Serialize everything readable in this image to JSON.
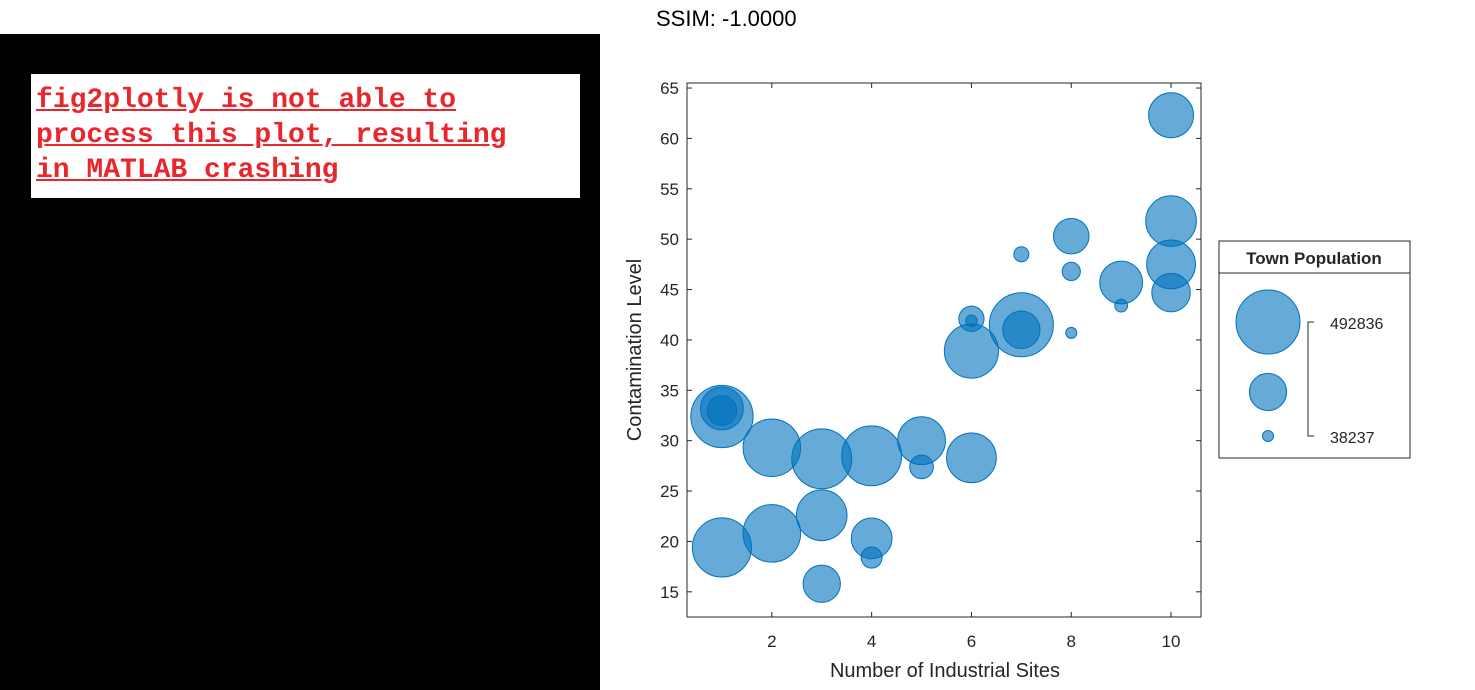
{
  "left_panel": {
    "error_message": "fig2plotly is not able to\nprocess this plot, resulting\nin MATLAB crashing",
    "error_color": "#e8262b"
  },
  "chart_data": {
    "type": "scatter",
    "title": "SSIM: -1.0000",
    "xlabel": "Number of Industrial Sites",
    "ylabel": "Contamination Level",
    "xlim": [
      0.3,
      10.6
    ],
    "ylim": [
      12.5,
      65.5
    ],
    "xticks": [
      2,
      4,
      6,
      8,
      10
    ],
    "yticks": [
      15,
      20,
      25,
      30,
      35,
      40,
      45,
      50,
      55,
      60,
      65
    ],
    "grid": false,
    "marker_color": "#0072BD",
    "marker_alpha": 0.6,
    "legend": {
      "title": "Town Population",
      "placement": "outside-right",
      "max_label": "492836",
      "min_label": "38237",
      "max_value": 492836,
      "min_value": 38237
    },
    "points": [
      {
        "x": 1,
        "y": 32.4,
        "size": 470000
      },
      {
        "x": 1,
        "y": 33.2,
        "size": 250000
      },
      {
        "x": 1,
        "y": 33.0,
        "size": 140000
      },
      {
        "x": 1,
        "y": 19.4,
        "size": 430000
      },
      {
        "x": 2,
        "y": 29.3,
        "size": 410000
      },
      {
        "x": 2,
        "y": 20.8,
        "size": 410000
      },
      {
        "x": 3,
        "y": 28.2,
        "size": 440000
      },
      {
        "x": 3,
        "y": 22.6,
        "size": 330000
      },
      {
        "x": 3,
        "y": 15.8,
        "size": 200000
      },
      {
        "x": 4,
        "y": 28.5,
        "size": 440000
      },
      {
        "x": 4,
        "y": 20.3,
        "size": 230000
      },
      {
        "x": 4,
        "y": 18.4,
        "size": 85000
      },
      {
        "x": 5,
        "y": 30.0,
        "size": 300000
      },
      {
        "x": 5,
        "y": 27.4,
        "size": 100000
      },
      {
        "x": 6,
        "y": 28.3,
        "size": 320000
      },
      {
        "x": 6,
        "y": 38.9,
        "size": 370000
      },
      {
        "x": 6,
        "y": 42.1,
        "size": 110000
      },
      {
        "x": 6,
        "y": 41.9,
        "size": 40000
      },
      {
        "x": 7,
        "y": 41.5,
        "size": 492836
      },
      {
        "x": 7,
        "y": 41.0,
        "size": 200000
      },
      {
        "x": 7,
        "y": 48.5,
        "size": 55000
      },
      {
        "x": 8,
        "y": 50.3,
        "size": 185000
      },
      {
        "x": 8,
        "y": 46.8,
        "size": 70000
      },
      {
        "x": 8,
        "y": 40.7,
        "size": 38237
      },
      {
        "x": 9,
        "y": 45.7,
        "size": 250000
      },
      {
        "x": 9,
        "y": 43.4,
        "size": 45000
      },
      {
        "x": 10,
        "y": 62.3,
        "size": 270000
      },
      {
        "x": 10,
        "y": 51.8,
        "size": 330000
      },
      {
        "x": 10,
        "y": 47.5,
        "size": 310000
      },
      {
        "x": 10,
        "y": 44.7,
        "size": 210000
      }
    ]
  }
}
